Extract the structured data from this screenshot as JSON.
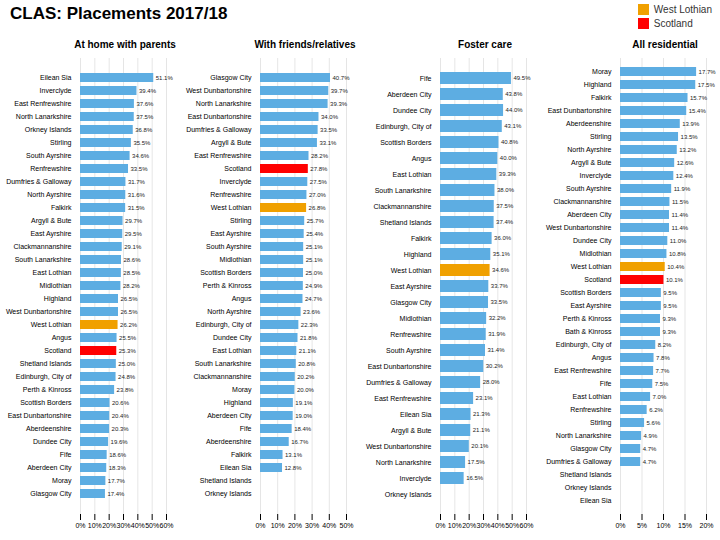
{
  "title": "CLAS: Placements 2017/18",
  "legend": "top-right",
  "series": [
    {
      "name": "West Lothian",
      "color": "#F0A000"
    },
    {
      "name": "Scotland",
      "color": "#FF0000"
    }
  ],
  "chart_data": [
    {
      "type": "bar",
      "orientation": "horizontal",
      "title": "At home with parents",
      "grid": true,
      "data_labels": true,
      "xlim": [
        0,
        60
      ],
      "xticks": [
        {
          "value": 0,
          "label": "0%"
        },
        {
          "value": 10,
          "label": "10%"
        },
        {
          "value": 20,
          "label": "20%"
        },
        {
          "value": 30,
          "label": "30%"
        },
        {
          "value": 40,
          "label": "40%"
        },
        {
          "value": 50,
          "label": "50%"
        },
        {
          "value": 60,
          "label": "60%"
        }
      ],
      "categories": [
        "Eilean Sia",
        "Inverclyde",
        "East Renfrewshire",
        "North Lanarkshire",
        "Orkney Islands",
        "Stirling",
        "South Ayrshire",
        "Renfrewshire",
        "Dumfries & Galloway",
        "North Ayrshire",
        "Falkirk",
        "Argyll & Bute",
        "East Ayrshire",
        "Clackmannanshire",
        "South Lanarkshire",
        "East Lothian",
        "Midlothian",
        "Highland",
        "West Dunbartonshire",
        "West Lothian",
        "Angus",
        "Scotland",
        "Shetland Islands",
        "Edinburgh, City of",
        "Perth & Kinross",
        "Scottish Borders",
        "East Dunbartonshire",
        "Aberdeenshire",
        "Dundee City",
        "Fife",
        "Aberdeen City",
        "Moray",
        "Glasgow City"
      ],
      "values": [
        51.1,
        39.4,
        37.6,
        37.5,
        36.8,
        35.5,
        34.6,
        33.5,
        31.7,
        31.6,
        31.5,
        29.7,
        29.5,
        29.1,
        28.6,
        28.5,
        28.2,
        26.5,
        26.5,
        26.2,
        25.5,
        25.3,
        25.0,
        24.8,
        23.8,
        20.6,
        20.4,
        20.3,
        19.6,
        18.6,
        18.3,
        17.7,
        17.4
      ],
      "value_labels": [
        "51.1%",
        "39.4%",
        "37.6%",
        "37.5%",
        "36.8%",
        "35.5%",
        "34.6%",
        "33.5%",
        "31.7%",
        "31.6%",
        "31.5%",
        "29.7%",
        "29.5%",
        "29.1%",
        "28.6%",
        "28.5%",
        "28.2%",
        "26.5%",
        "26.5%",
        "26.2%",
        "25.5%",
        "25.3%",
        "25.0%",
        "24.8%",
        "23.8%",
        "20.6%",
        "20.4%",
        "20.3%",
        "19.6%",
        "18.6%",
        "18.3%",
        "17.7%",
        "17.4%"
      ],
      "colors": [
        "#5DADE2",
        "#5DADE2",
        "#5DADE2",
        "#5DADE2",
        "#5DADE2",
        "#5DADE2",
        "#5DADE2",
        "#5DADE2",
        "#5DADE2",
        "#5DADE2",
        "#5DADE2",
        "#5DADE2",
        "#5DADE2",
        "#5DADE2",
        "#5DADE2",
        "#5DADE2",
        "#5DADE2",
        "#5DADE2",
        "#5DADE2",
        "#F0A000",
        "#5DADE2",
        "#FF0000",
        "#5DADE2",
        "#5DADE2",
        "#5DADE2",
        "#5DADE2",
        "#5DADE2",
        "#5DADE2",
        "#5DADE2",
        "#5DADE2",
        "#5DADE2",
        "#5DADE2",
        "#5DADE2"
      ]
    },
    {
      "type": "bar",
      "orientation": "horizontal",
      "title": "With friends/relatives",
      "grid": true,
      "data_labels": true,
      "xlim": [
        0,
        50
      ],
      "xticks": [
        {
          "value": 0,
          "label": "0%"
        },
        {
          "value": 10,
          "label": "10%"
        },
        {
          "value": 20,
          "label": "20%"
        },
        {
          "value": 30,
          "label": "30%"
        },
        {
          "value": 40,
          "label": "40%"
        },
        {
          "value": 50,
          "label": "50%"
        }
      ],
      "categories": [
        "Glasgow City",
        "West Dunbartonshire",
        "North Lanarkshire",
        "East Dunbartonshire",
        "Dumfries & Galloway",
        "Argyll & Bute",
        "East Renfrewshire",
        "Scotland",
        "Inverclyde",
        "Renfrewshire",
        "West Lothian",
        "Stirling",
        "East Ayrshire",
        "South Ayrshire",
        "Midlothian",
        "Scottish Borders",
        "Perth & Kinross",
        "Angus",
        "North Ayrshire",
        "Edinburgh, City of",
        "Dundee City",
        "East Lothian",
        "South Lanarkshire",
        "Clackmannanshire",
        "Moray",
        "Highland",
        "Aberdeen City",
        "Fife",
        "Aberdeenshire",
        "Falkirk",
        "Eilean Sia",
        "Shetland Islands",
        "Orkney Islands"
      ],
      "values": [
        40.7,
        39.7,
        39.3,
        34.0,
        33.5,
        33.1,
        28.2,
        27.8,
        27.5,
        27.0,
        26.8,
        25.7,
        25.4,
        25.1,
        25.1,
        25.0,
        24.9,
        24.7,
        23.6,
        22.3,
        21.8,
        21.1,
        20.8,
        20.2,
        20.0,
        19.1,
        19.0,
        18.4,
        16.7,
        13.1,
        12.8,
        0.0,
        0.0
      ],
      "value_labels": [
        "40.7%",
        "39.7%",
        "39.3%",
        "34.0%",
        "33.5%",
        "33.1%",
        "28.2%",
        "27.8%",
        "27.5%",
        "27.0%",
        "26.8%",
        "25.7%",
        "25.4%",
        "25.1%",
        "25.1%",
        "25.0%",
        "24.9%",
        "24.7%",
        "23.6%",
        "22.3%",
        "21.8%",
        "21.1%",
        "20.8%",
        "20.2%",
        "20.0%",
        "19.1%",
        "19.0%",
        "18.4%",
        "16.7%",
        "13.1%",
        "12.8%",
        null,
        null
      ],
      "colors": [
        "#5DADE2",
        "#5DADE2",
        "#5DADE2",
        "#5DADE2",
        "#5DADE2",
        "#5DADE2",
        "#5DADE2",
        "#FF0000",
        "#5DADE2",
        "#5DADE2",
        "#F0A000",
        "#5DADE2",
        "#5DADE2",
        "#5DADE2",
        "#5DADE2",
        "#5DADE2",
        "#5DADE2",
        "#5DADE2",
        "#5DADE2",
        "#5DADE2",
        "#5DADE2",
        "#5DADE2",
        "#5DADE2",
        "#5DADE2",
        "#5DADE2",
        "#5DADE2",
        "#5DADE2",
        "#5DADE2",
        "#5DADE2",
        "#5DADE2",
        "#5DADE2",
        "#5DADE2",
        "#5DADE2"
      ]
    },
    {
      "type": "bar",
      "orientation": "horizontal",
      "title": "Foster care",
      "grid": true,
      "data_labels": true,
      "xlim": [
        0,
        60
      ],
      "xticks": [
        {
          "value": 0,
          "label": "0%"
        },
        {
          "value": 10,
          "label": "10%"
        },
        {
          "value": 20,
          "label": "20%"
        },
        {
          "value": 30,
          "label": "30%"
        },
        {
          "value": 40,
          "label": "40%"
        },
        {
          "value": 50,
          "label": "50%"
        },
        {
          "value": 60,
          "label": "60%"
        }
      ],
      "categories": [
        "Fife",
        "Aberdeen City",
        "Dundee City",
        "Edinburgh, City of",
        "Scottish Borders",
        "Angus",
        "East Lothian",
        "South Lanarkshire",
        "Clackmannanshire",
        "Shetland Islands",
        "Falkirk",
        "Highland",
        "West Lothian",
        "East Ayrshire",
        "Glasgow City",
        "Midlothian",
        "Renfrewshire",
        "South Ayrshire",
        "East Dunbartonshire",
        "Dumfries & Galloway",
        "East Renfrewshire",
        "Eilean Sia",
        "Argyll & Bute",
        "West Dunbartonshire",
        "North Lanarkshire",
        "Inverclyde",
        "Orkney Islands"
      ],
      "values": [
        49.5,
        43.8,
        44.0,
        43.1,
        40.8,
        40.0,
        39.3,
        38.0,
        37.5,
        37.4,
        36.0,
        35.1,
        34.6,
        33.7,
        33.5,
        32.2,
        31.9,
        31.4,
        30.2,
        28.0,
        23.1,
        21.3,
        21.1,
        20.1,
        17.5,
        16.5,
        0.0
      ],
      "value_labels": [
        "49.5%",
        "43.8%",
        "44.0%",
        "43.1%",
        "40.8%",
        "40.0%",
        "39.3%",
        "38.0%",
        "37.5%",
        "37.4%",
        "36.0%",
        "35.1%",
        "34.6%",
        "33.7%",
        "33.5%",
        "32.2%",
        "31.9%",
        "31.4%",
        "30.2%",
        "28.0%",
        "23.1%",
        "21.3%",
        "21.1%",
        "20.1%",
        "17.5%",
        "16.5%",
        null
      ],
      "colors": [
        "#5DADE2",
        "#5DADE2",
        "#5DADE2",
        "#5DADE2",
        "#5DADE2",
        "#5DADE2",
        "#5DADE2",
        "#5DADE2",
        "#5DADE2",
        "#5DADE2",
        "#5DADE2",
        "#5DADE2",
        "#F0A000",
        "#5DADE2",
        "#5DADE2",
        "#5DADE2",
        "#5DADE2",
        "#5DADE2",
        "#5DADE2",
        "#5DADE2",
        "#5DADE2",
        "#5DADE2",
        "#5DADE2",
        "#5DADE2",
        "#5DADE2",
        "#5DADE2",
        "#5DADE2"
      ]
    },
    {
      "type": "bar",
      "orientation": "horizontal",
      "title": "All residential",
      "grid": true,
      "data_labels": true,
      "xlim": [
        0,
        20
      ],
      "xticks": [
        {
          "value": 0,
          "label": "0%"
        },
        {
          "value": 5,
          "label": "5%"
        },
        {
          "value": 10,
          "label": "10%"
        },
        {
          "value": 15,
          "label": "15%"
        },
        {
          "value": 20,
          "label": "20%"
        }
      ],
      "categories": [
        "Moray",
        "Highland",
        "Falkirk",
        "East Dunbartonshire",
        "Aberdeenshire",
        "Stirling",
        "North Ayrshire",
        "Argyll & Bute",
        "Inverclyde",
        "South Ayrshire",
        "Clackmannanshire",
        "Aberdeen City",
        "West Dunbartonshire",
        "Dundee City",
        "Midlothian",
        "West Lothian",
        "Scotland",
        "Scottish Borders",
        "East Ayrshire",
        "Perth & Kinross",
        "Bath & Kinross",
        "Edinburgh, City of",
        "Angus",
        "East Renfrewshire",
        "Fife",
        "East Lothian",
        "Renfrewshire",
        "Stirling",
        "North Lanarkshire",
        "Glasgow City",
        "Dumfries & Galloway",
        "Shetland Islands",
        "Orkney Islands",
        "Eilean Sia"
      ],
      "values": [
        17.7,
        17.5,
        15.7,
        15.4,
        13.9,
        13.5,
        13.2,
        12.6,
        12.4,
        11.9,
        11.5,
        11.4,
        11.4,
        11.0,
        10.8,
        10.4,
        10.1,
        9.5,
        9.5,
        9.3,
        9.3,
        8.2,
        7.8,
        7.7,
        7.5,
        7.0,
        6.2,
        5.6,
        4.9,
        4.7,
        4.7,
        0.0,
        0.0,
        0.0
      ],
      "value_labels": [
        "17.7%",
        "17.5%",
        "15.7%",
        "15.4%",
        "13.9%",
        "13.5%",
        "13.2%",
        "12.6%",
        "12.4%",
        "11.9%",
        "11.5%",
        "11.4%",
        "11.4%",
        "11.0%",
        "10.8%",
        "10.4%",
        "10.1%",
        "9.5%",
        "9.5%",
        "9.3%",
        "9.3%",
        "8.2%",
        "7.8%",
        "7.7%",
        "7.5%",
        "7.0%",
        "6.2%",
        "5.6%",
        "4.9%",
        "4.7%",
        "4.7%",
        null,
        null,
        null
      ],
      "colors": [
        "#5DADE2",
        "#5DADE2",
        "#5DADE2",
        "#5DADE2",
        "#5DADE2",
        "#5DADE2",
        "#5DADE2",
        "#5DADE2",
        "#5DADE2",
        "#5DADE2",
        "#5DADE2",
        "#5DADE2",
        "#5DADE2",
        "#5DADE2",
        "#5DADE2",
        "#F0A000",
        "#FF0000",
        "#5DADE2",
        "#5DADE2",
        "#5DADE2",
        "#5DADE2",
        "#5DADE2",
        "#5DADE2",
        "#5DADE2",
        "#5DADE2",
        "#5DADE2",
        "#5DADE2",
        "#5DADE2",
        "#5DADE2",
        "#5DADE2",
        "#5DADE2",
        "#5DADE2",
        "#5DADE2",
        "#5DADE2"
      ]
    }
  ]
}
